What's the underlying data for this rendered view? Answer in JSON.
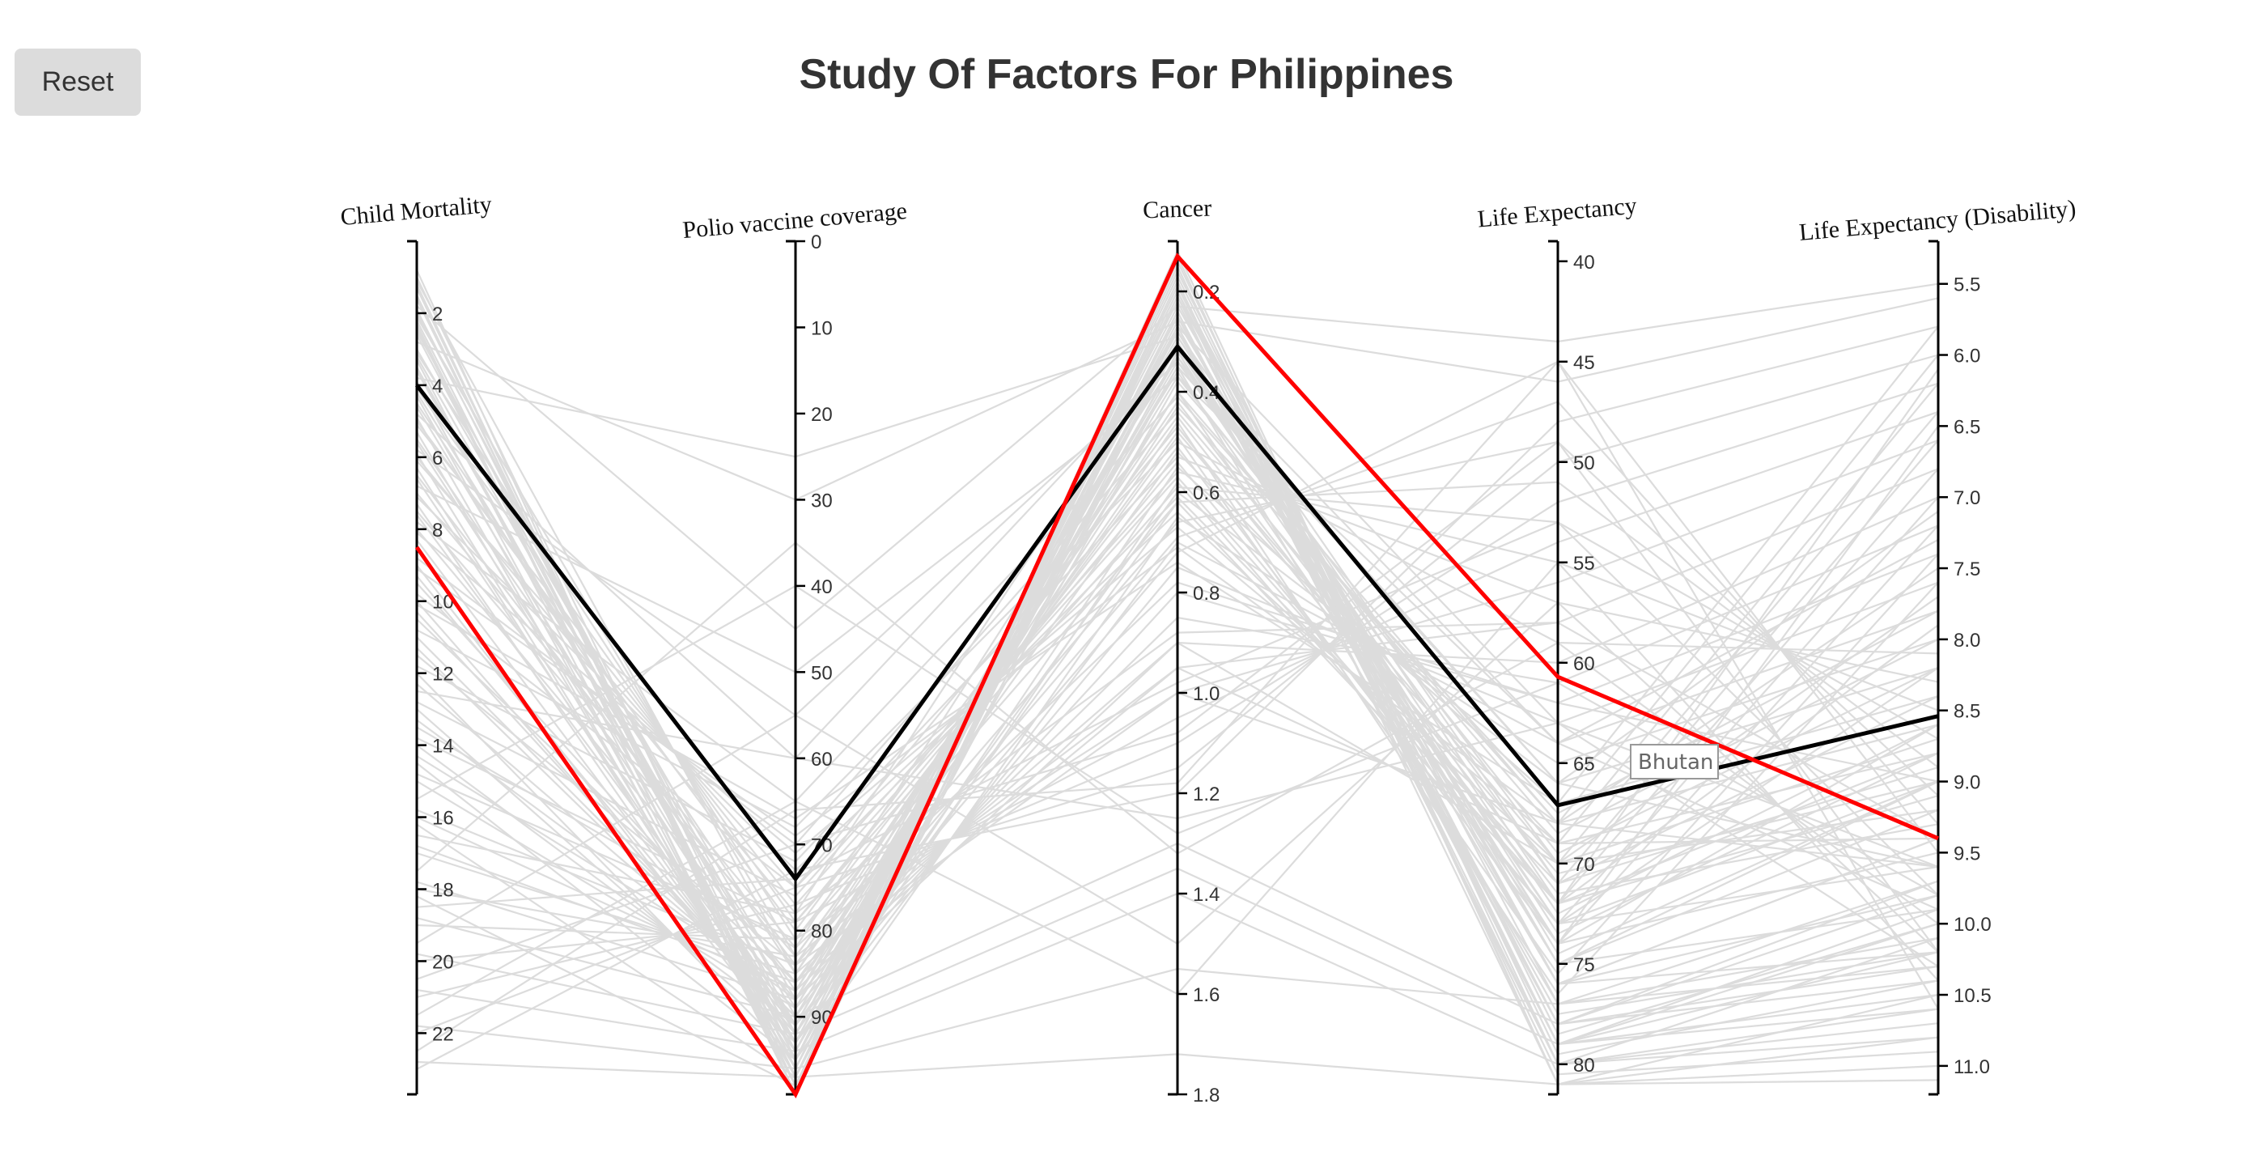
{
  "ui": {
    "reset_label": "Reset",
    "tooltip": "Bhutan"
  },
  "colors": {
    "background_lines": "#dcdcdc",
    "highlight": "#ff0000",
    "hover": "#000000"
  },
  "chart_data": {
    "type": "parallel-coordinates",
    "title": "Study Of Factors For Philippines",
    "axes": [
      {
        "name": "Child Mortality",
        "domain": [
          0,
          23.7
        ],
        "ticks": [
          2,
          4,
          6,
          8,
          10,
          12,
          14,
          16,
          18,
          20,
          22
        ]
      },
      {
        "name": "Polio vaccine coverage",
        "domain": [
          0,
          99
        ],
        "ticks": [
          0,
          10,
          20,
          30,
          40,
          50,
          60,
          70,
          80,
          90
        ]
      },
      {
        "name": "Cancer",
        "domain": [
          0.1,
          1.8
        ],
        "ticks": [
          0.2,
          0.4,
          0.6,
          0.8,
          1.0,
          1.2,
          1.4,
          1.6,
          1.8
        ],
        "tick_decimals": 1
      },
      {
        "name": "Life Expectancy",
        "domain": [
          39,
          81.5
        ],
        "ticks": [
          40,
          45,
          50,
          55,
          60,
          65,
          70,
          75,
          80
        ]
      },
      {
        "name": "Life Expectancy (Disability)",
        "domain": [
          5.2,
          11.2
        ],
        "ticks": [
          5.5,
          6.0,
          6.5,
          7.0,
          7.5,
          8.0,
          8.5,
          9.0,
          9.5,
          10.0,
          10.5,
          11.0
        ],
        "tick_decimals": 1
      }
    ],
    "highlighted": {
      "name": "Philippines",
      "values": [
        8.5,
        99,
        0.13,
        60.7,
        9.4
      ]
    },
    "hovered": {
      "name": "Bhutan",
      "values": [
        4.0,
        74,
        0.31,
        67.1,
        8.54
      ]
    },
    "background_series": [
      [
        1.0,
        95,
        0.2,
        80,
        10.8
      ],
      [
        2.0,
        92,
        0.25,
        78,
        10.3
      ],
      [
        3.0,
        88,
        0.3,
        76,
        9.8
      ],
      [
        1.5,
        97,
        0.15,
        81,
        11.0
      ],
      [
        2.5,
        90,
        0.35,
        77,
        10.1
      ],
      [
        4.5,
        85,
        0.4,
        74,
        9.5
      ],
      [
        3.5,
        93,
        0.22,
        79,
        10.6
      ],
      [
        5.0,
        80,
        0.45,
        72,
        9.1
      ],
      [
        6.0,
        78,
        0.28,
        71,
        8.9
      ],
      [
        7.0,
        82,
        0.33,
        70,
        8.7
      ],
      [
        1.2,
        98,
        0.18,
        80.5,
        10.9
      ],
      [
        2.2,
        96,
        0.24,
        79,
        10.5
      ],
      [
        3.2,
        91,
        0.27,
        77.5,
        10.2
      ],
      [
        4.2,
        89,
        0.31,
        75,
        9.9
      ],
      [
        5.5,
        87,
        0.36,
        73,
        9.6
      ],
      [
        6.5,
        84,
        0.42,
        71.5,
        9.3
      ],
      [
        7.5,
        83,
        0.48,
        70.5,
        9.0
      ],
      [
        8.0,
        86,
        0.52,
        69,
        8.8
      ],
      [
        9.0,
        94,
        0.38,
        68,
        8.6
      ],
      [
        10.0,
        92,
        0.55,
        67,
        8.4
      ],
      [
        11.0,
        90,
        0.6,
        66,
        8.2
      ],
      [
        12.0,
        95,
        0.65,
        65,
        8.0
      ],
      [
        13.0,
        93,
        0.7,
        64,
        7.8
      ],
      [
        14.0,
        91,
        0.75,
        63,
        7.6
      ],
      [
        15.0,
        89,
        0.8,
        62,
        7.4
      ],
      [
        16.0,
        87,
        0.85,
        61,
        7.2
      ],
      [
        17.0,
        85,
        0.9,
        60,
        7.0
      ],
      [
        18.0,
        83,
        0.95,
        58,
        6.8
      ],
      [
        19.0,
        81,
        1.0,
        56,
        6.6
      ],
      [
        20.0,
        79,
        1.05,
        54,
        6.4
      ],
      [
        21.0,
        77,
        1.1,
        52,
        6.2
      ],
      [
        22.0,
        75,
        1.15,
        50,
        6.0
      ],
      [
        23.0,
        73,
        1.2,
        48,
        5.8
      ],
      [
        1.8,
        45,
        0.23,
        44,
        5.5
      ],
      [
        2.8,
        30,
        0.26,
        46,
        5.6
      ],
      [
        3.8,
        25,
        0.29,
        72,
        6.1
      ],
      [
        4.8,
        60,
        0.32,
        74,
        6.5
      ],
      [
        5.8,
        55,
        0.34,
        66,
        7.1
      ],
      [
        6.8,
        50,
        0.37,
        64,
        7.3
      ],
      [
        7.8,
        65,
        0.41,
        68,
        7.5
      ],
      [
        8.8,
        70,
        0.44,
        70,
        7.7
      ],
      [
        9.8,
        75,
        0.47,
        72,
        7.9
      ],
      [
        10.8,
        68,
        0.5,
        59,
        8.1
      ],
      [
        11.8,
        72,
        0.53,
        57,
        8.3
      ],
      [
        12.8,
        76,
        0.56,
        55,
        8.5
      ],
      [
        13.8,
        79,
        0.59,
        53,
        8.7
      ],
      [
        14.8,
        81,
        0.62,
        51,
        8.9
      ],
      [
        15.8,
        84,
        0.66,
        49,
        9.1
      ],
      [
        16.8,
        86,
        0.69,
        47,
        9.3
      ],
      [
        17.8,
        88,
        0.72,
        45,
        9.5
      ],
      [
        18.8,
        90,
        1.3,
        78,
        9.7
      ],
      [
        19.8,
        92,
        1.35,
        79,
        9.9
      ],
      [
        20.8,
        94,
        1.4,
        80,
        10.1
      ],
      [
        21.8,
        96,
        1.55,
        77,
        10.3
      ],
      [
        22.8,
        97,
        1.72,
        81,
        10.5
      ],
      [
        2.3,
        99,
        0.12,
        80,
        10.7
      ],
      [
        3.3,
        98,
        0.14,
        79.5,
        10.4
      ],
      [
        4.3,
        97,
        0.16,
        78.5,
        10.0
      ],
      [
        5.3,
        96,
        0.19,
        77,
        9.7
      ],
      [
        6.3,
        95,
        0.21,
        76,
        9.4
      ],
      [
        7.3,
        94,
        0.23,
        75,
        9.2
      ],
      [
        8.3,
        93,
        0.26,
        74.5,
        9.0
      ],
      [
        9.3,
        92,
        0.29,
        73.5,
        8.8
      ],
      [
        10.3,
        91,
        0.31,
        72.5,
        8.6
      ],
      [
        11.3,
        90,
        0.34,
        71,
        8.4
      ],
      [
        12.3,
        89,
        0.37,
        69.5,
        8.2
      ],
      [
        13.3,
        88,
        0.4,
        68.5,
        8.0
      ],
      [
        14.3,
        87,
        0.43,
        67.5,
        7.8
      ],
      [
        1.1,
        85,
        0.46,
        76.5,
        7.6
      ],
      [
        2.1,
        83,
        0.49,
        75.5,
        7.4
      ],
      [
        3.1,
        81,
        0.51,
        74,
        7.2
      ],
      [
        4.1,
        79,
        0.54,
        73,
        7.0
      ],
      [
        5.1,
        77,
        0.57,
        72,
        6.8
      ],
      [
        6.1,
        75,
        0.61,
        71,
        6.6
      ],
      [
        7.1,
        73,
        0.64,
        70,
        6.4
      ],
      [
        8.1,
        71,
        0.67,
        69,
        6.2
      ],
      [
        9.1,
        69,
        0.71,
        68,
        6.0
      ],
      [
        10.1,
        67,
        0.74,
        67,
        5.8
      ],
      [
        1.3,
        97,
        0.17,
        79,
        10.2
      ],
      [
        1.6,
        96,
        0.2,
        78,
        9.8
      ],
      [
        2.6,
        94,
        0.25,
        76,
        9.4
      ],
      [
        3.6,
        93,
        0.28,
        75,
        9.0
      ],
      [
        4.6,
        92,
        0.3,
        74,
        8.6
      ],
      [
        5.6,
        91,
        0.33,
        73,
        8.2
      ],
      [
        0.8,
        99,
        0.13,
        81,
        11.1
      ],
      [
        1.9,
        95,
        0.19,
        79,
        10.0
      ],
      [
        12.5,
        60,
        1.25,
        63,
        9.6
      ],
      [
        15.5,
        40,
        1.28,
        61,
        9.8
      ],
      [
        17.5,
        35,
        1.32,
        59,
        10.0
      ],
      [
        19.5,
        55,
        1.5,
        57,
        10.2
      ],
      [
        21.5,
        65,
        1.6,
        55,
        10.4
      ],
      [
        9.5,
        88,
        0.9,
        70,
        9.2
      ],
      [
        10.5,
        86,
        0.95,
        69,
        9.4
      ],
      [
        11.5,
        84,
        1.0,
        68,
        9.6
      ],
      [
        6.6,
        93,
        0.58,
        73,
        9.0
      ],
      [
        7.6,
        91,
        0.62,
        72,
        8.8
      ],
      [
        3.9,
        98,
        0.24,
        80,
        10.6
      ],
      [
        4.9,
        97,
        0.27,
        78,
        10.4
      ],
      [
        5.9,
        96,
        0.3,
        76,
        10.2
      ],
      [
        2.4,
        99,
        0.21,
        81,
        10.8
      ],
      [
        13.5,
        82,
        0.78,
        62,
        9.0
      ],
      [
        16.5,
        78,
        0.88,
        58,
        9.4
      ],
      [
        18.5,
        74,
        0.98,
        53,
        9.8
      ],
      [
        20.5,
        70,
        1.08,
        49,
        10.2
      ],
      [
        22.5,
        66,
        1.18,
        45,
        10.6
      ],
      [
        14.5,
        95,
        0.35,
        66,
        9.6
      ],
      [
        16.2,
        97,
        0.32,
        64,
        9.9
      ],
      [
        18.2,
        98,
        0.27,
        63,
        10.3
      ]
    ]
  }
}
